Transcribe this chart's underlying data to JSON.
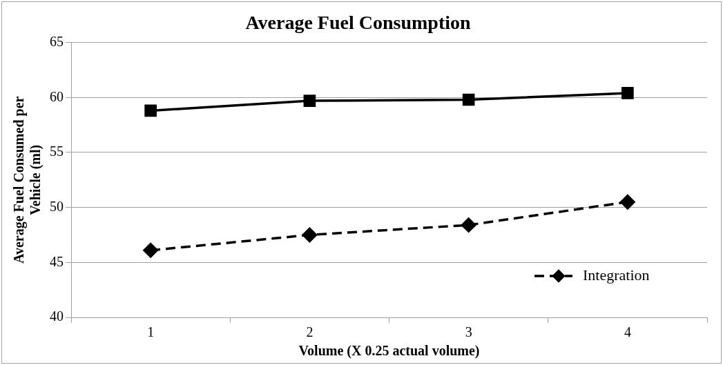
{
  "chart_data": {
    "type": "line",
    "title": "Average Fuel Consumption",
    "xlabel": "Volume (X 0.25 actual volume)",
    "ylabel": "Average Fuel Consumed per Vehicle (ml)",
    "categories": [
      "1",
      "2",
      "3",
      "4"
    ],
    "series": [
      {
        "name": "Integration",
        "color": "#000000",
        "values": [
          46.1,
          47.5,
          48.4,
          50.5
        ],
        "marker": "diamond",
        "line_style": "dashed"
      },
      {
        "color": "#000000",
        "values": [
          58.8,
          59.7,
          59.8,
          60.4
        ],
        "marker": "square",
        "line_style": "solid"
      }
    ],
    "ylim": [
      40,
      65
    ],
    "yticks": [
      40,
      45,
      50,
      55,
      60,
      65
    ],
    "grid": "y",
    "legend": "bottom right"
  }
}
